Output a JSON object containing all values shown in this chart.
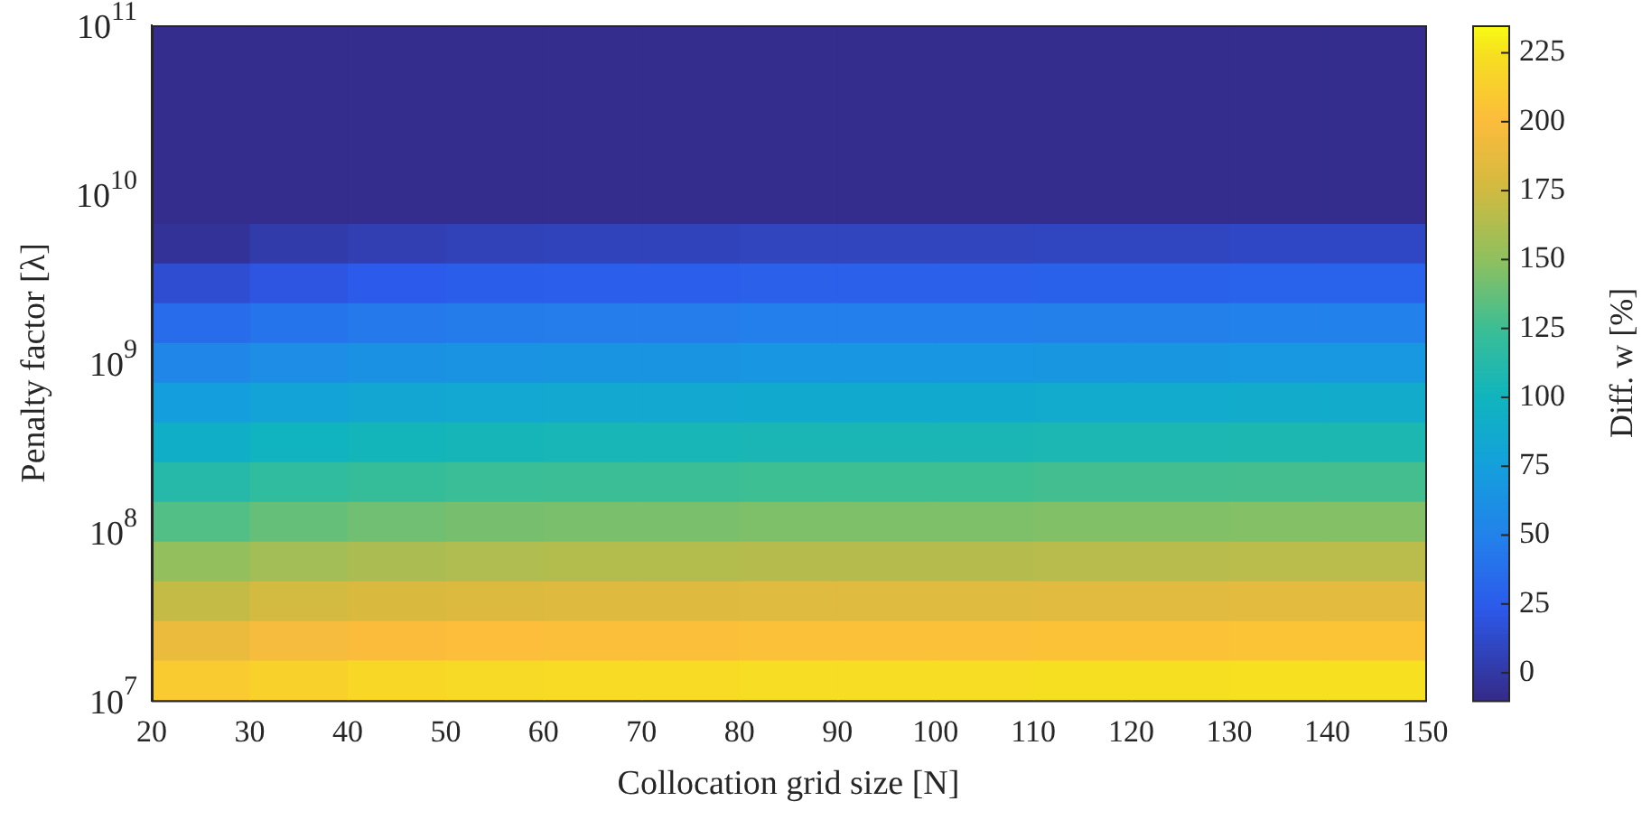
{
  "chart_data": {
    "type": "heatmap",
    "xlabel": "Collocation grid size [N]",
    "ylabel": "Penalty factor [λ]",
    "clabel": "Diff. w [%]",
    "x": [
      25,
      35,
      45,
      55,
      65,
      75,
      85,
      95,
      105,
      115,
      125,
      135,
      145
    ],
    "cells": [
      [
        -8,
        -8,
        -8,
        -8,
        -8,
        -8,
        -8,
        -8,
        -8,
        -8,
        -8,
        -8,
        -8
      ],
      [
        -8,
        -8,
        -8,
        -8,
        -8,
        -8,
        -8,
        -8,
        -8,
        -8,
        -8,
        -8,
        -8
      ],
      [
        -8,
        -8,
        -8,
        -8,
        -8,
        -8,
        -8,
        -8,
        -8,
        -8,
        -8,
        -8,
        -8
      ],
      [
        -8,
        -8,
        -8,
        -8,
        -8,
        -8,
        -8,
        -8,
        -8,
        -8,
        -8,
        -8,
        -8
      ],
      [
        -8,
        -8,
        -8,
        -8,
        -8,
        -8,
        -8,
        -8,
        -8,
        -8,
        -8,
        -8,
        -8
      ],
      [
        -4,
        2,
        5,
        7,
        8,
        8,
        9,
        9,
        9,
        10,
        10,
        11,
        11
      ],
      [
        15,
        21,
        24,
        26,
        27,
        27,
        28,
        28,
        28,
        29,
        29,
        30,
        30
      ],
      [
        35,
        41,
        44,
        46,
        47,
        47,
        48,
        48,
        48,
        49,
        49,
        50,
        50
      ],
      [
        54,
        60,
        63,
        65,
        66,
        66,
        67,
        67,
        67,
        68,
        68,
        69,
        69
      ],
      [
        74,
        80,
        83,
        85,
        86,
        86,
        87,
        87,
        87,
        88,
        88,
        89,
        89
      ],
      [
        93,
        99,
        102,
        104,
        105,
        105,
        106,
        106,
        106,
        107,
        107,
        108,
        108
      ],
      [
        113,
        119,
        122,
        124,
        125,
        125,
        126,
        126,
        126,
        127,
        127,
        128,
        128
      ],
      [
        132,
        138,
        141,
        143,
        144,
        144,
        145,
        145,
        145,
        146,
        146,
        147,
        147
      ],
      [
        152,
        158,
        161,
        163,
        164,
        164,
        165,
        165,
        165,
        166,
        166,
        167,
        167
      ],
      [
        171,
        177,
        180,
        182,
        183,
        183,
        184,
        184,
        184,
        185,
        185,
        186,
        186
      ],
      [
        191,
        197,
        200,
        202,
        203,
        203,
        204,
        204,
        204,
        205,
        205,
        206,
        206
      ],
      [
        210,
        216,
        219,
        221,
        222,
        222,
        223,
        223,
        223,
        224,
        224,
        225,
        225
      ]
    ],
    "xlim": [
      20,
      150
    ],
    "xticks": [
      20,
      30,
      40,
      50,
      60,
      70,
      80,
      90,
      100,
      110,
      120,
      130,
      140,
      150
    ],
    "ylim": [
      10000000,
      100000000000
    ],
    "yticks": [
      {
        "value": 10000000,
        "label": "10$^{7}$"
      },
      {
        "value": 100000000,
        "label": "10$^{8}$"
      },
      {
        "value": 1000000000,
        "label": "10$^{9}$"
      },
      {
        "value": 10000000000,
        "label": "10$^{10}$"
      },
      {
        "value": 100000000000,
        "label": "10$^{11}$"
      }
    ],
    "log": "y",
    "clim": [
      -10,
      235
    ],
    "cticks": [
      0,
      25,
      50,
      75,
      100,
      125,
      150,
      175,
      200,
      225
    ]
  }
}
